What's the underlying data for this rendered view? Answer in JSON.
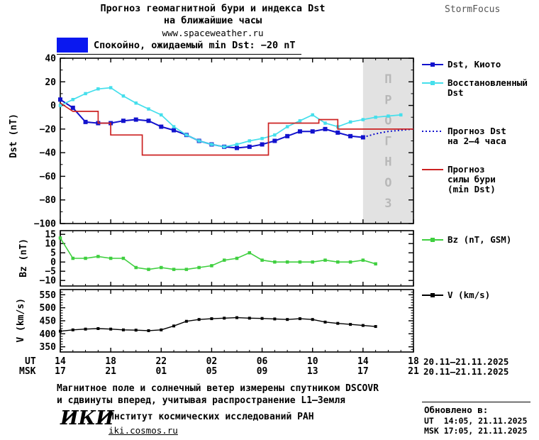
{
  "header": {
    "title_line1": "Прогноз геомагнитной бури и индекса Dst",
    "title_line2": "на ближайшие часы",
    "url": "www.spaceweather.ru",
    "brand": "StormFocus"
  },
  "status": {
    "text": "Спокойно, ожидаемый min Dst: −20 nT",
    "swatch_color": "#0a18f0"
  },
  "chart_data": [
    {
      "type": "line",
      "name": "dst-panel",
      "ylabel": "Dst (nT)",
      "xlim": [
        0,
        28
      ],
      "x_start_label_ut": "14",
      "ylim": [
        -100,
        40
      ],
      "yticks": [
        40,
        20,
        0,
        -20,
        -40,
        -60,
        -80,
        -100
      ],
      "ytick_labels": [
        "40",
        "20",
        "0",
        "−20",
        "−40",
        "−60",
        "−80",
        "−100"
      ],
      "yminor_step": 10,
      "forecast_band": [
        24,
        28
      ],
      "band_text": "ПРОГНОЗ",
      "series": [
        {
          "name": "Dst, Киото",
          "color": "#1212cd",
          "marker": "square",
          "marker_size": 6,
          "width": 2,
          "x": [
            0,
            1,
            2,
            3,
            4,
            5,
            6,
            7,
            8,
            9,
            10,
            11,
            12,
            13,
            14,
            15,
            16,
            17,
            18,
            19,
            20,
            21,
            22,
            23,
            24
          ],
          "values": [
            5,
            -2,
            -14,
            -15,
            -15,
            -13,
            -12,
            -13,
            -18,
            -21,
            -25,
            -30,
            -33,
            -35,
            -36,
            -35,
            -33,
            -30,
            -26,
            -22,
            -22,
            -20,
            -23,
            -26,
            -27
          ]
        },
        {
          "name": "Восстановленный Dst",
          "color": "#45dfec",
          "marker": "square",
          "marker_size": 4.5,
          "width": 1.7,
          "x": [
            0,
            1,
            2,
            3,
            4,
            5,
            6,
            7,
            8,
            9,
            10,
            11,
            12,
            13,
            14,
            15,
            16,
            17,
            18,
            19,
            20,
            21,
            22,
            23,
            24,
            25,
            26,
            27
          ],
          "values": [
            0,
            5,
            10,
            14,
            15,
            8,
            2,
            -3,
            -8,
            -18,
            -25,
            -30,
            -33,
            -35,
            -33,
            -30,
            -28,
            -25,
            -18,
            -13,
            -8,
            -15,
            -18,
            -14,
            -12,
            -10,
            -9,
            -8
          ]
        },
        {
          "name": "Прогноз Dst на 2–4 часа",
          "color": "#1212cd",
          "dash": "2,3",
          "width": 2,
          "x": [
            24,
            25,
            26,
            27,
            28
          ],
          "values": [
            -27,
            -24,
            -22,
            -21,
            -20
          ]
        },
        {
          "name": "Прогноз силы бури (min Dst)",
          "color": "#cc2222",
          "width": 1.7,
          "x": [
            0,
            1,
            3,
            3,
            4,
            4,
            6.5,
            6.5,
            16.5,
            16.5,
            20.5,
            20.5,
            22,
            22,
            28
          ],
          "values": [
            2,
            -5,
            -5,
            -15,
            -15,
            -25,
            -25,
            -42,
            -42,
            -15,
            -15,
            -12,
            -12,
            -20,
            -20
          ]
        }
      ]
    },
    {
      "type": "line",
      "name": "bz-panel",
      "ylabel": "Bz (nT)",
      "xlim": [
        0,
        28
      ],
      "ylim": [
        -13,
        17
      ],
      "yticks": [
        15,
        10,
        5,
        0,
        -5,
        -10
      ],
      "ytick_labels": [
        "15",
        "10",
        "5",
        "0",
        "−5",
        "−10"
      ],
      "series": [
        {
          "name": "Bz (nT, GSM)",
          "color": "#3fcf3f",
          "marker": "square",
          "marker_size": 4.5,
          "width": 1.6,
          "x": [
            0,
            1,
            2,
            3,
            4,
            5,
            6,
            7,
            8,
            9,
            10,
            11,
            12,
            13,
            14,
            15,
            16,
            17,
            18,
            19,
            20,
            21,
            22,
            23,
            24,
            25
          ],
          "values": [
            13,
            2,
            2,
            3,
            2,
            2,
            -3,
            -4,
            -3,
            -4,
            -4,
            -3,
            -2,
            1,
            2,
            5,
            1,
            0,
            0,
            0,
            0,
            1,
            0,
            0,
            1,
            -1
          ]
        }
      ]
    },
    {
      "type": "line",
      "name": "v-panel",
      "ylabel": "V (km/s)",
      "xlim": [
        0,
        28
      ],
      "ylim": [
        330,
        570
      ],
      "yticks": [
        550,
        500,
        450,
        400,
        350
      ],
      "ytick_labels": [
        "550",
        "500",
        "450",
        "400",
        "350"
      ],
      "yminor_step": 10,
      "series": [
        {
          "name": "V (km/s)",
          "color": "#000000",
          "marker": "square",
          "marker_size": 4,
          "width": 1.4,
          "x": [
            0,
            1,
            2,
            3,
            4,
            5,
            6,
            7,
            8,
            9,
            10,
            11,
            12,
            13,
            14,
            15,
            16,
            17,
            18,
            19,
            20,
            21,
            22,
            23,
            24,
            25
          ],
          "values": [
            410,
            415,
            418,
            420,
            418,
            415,
            414,
            412,
            415,
            430,
            448,
            455,
            458,
            460,
            462,
            460,
            459,
            457,
            455,
            458,
            455,
            445,
            440,
            436,
            432,
            428
          ]
        }
      ]
    }
  ],
  "legend": {
    "items": [
      {
        "lines": [
          "Dst, Киото"
        ],
        "color": "#1212cd",
        "icon": "line-square"
      },
      {
        "lines": [
          "Восстановленный",
          "Dst"
        ],
        "color": "#45dfec",
        "icon": "line-square"
      },
      {
        "lines": [
          "Прогноз Dst",
          "на 2–4 часа"
        ],
        "color": "#1212cd",
        "icon": "dotted"
      },
      {
        "lines": [
          "Прогноз",
          "силы бури",
          "(min Dst)"
        ],
        "color": "#cc2222",
        "icon": "line"
      },
      {
        "lines": [
          "Bz (nT, GSM)"
        ],
        "color": "#3fcf3f",
        "icon": "line-square"
      },
      {
        "lines": [
          "V (km/s)"
        ],
        "color": "#000000",
        "icon": "line-square"
      }
    ]
  },
  "xaxis": {
    "row_ut_label": "UT",
    "row_msk_label": "MSK",
    "tick_hours": [
      0,
      4,
      8,
      12,
      16,
      20,
      24,
      28
    ],
    "ut_labels": [
      "14",
      "18",
      "22",
      "02",
      "06",
      "10",
      "14",
      "18"
    ],
    "msk_labels": [
      "17",
      "21",
      "01",
      "05",
      "09",
      "13",
      "17",
      "21"
    ],
    "ut_date_range": "20.11–21.11.2025",
    "msk_date_range": "20.11–21.11.2025"
  },
  "footer": {
    "note_line1": "Магнитное поле и солнечный ветер измерены спутником DSCOVR",
    "note_line2": "и сдвинуты вперед, учитывая распространение L1–Земля",
    "logo": "ИКИ",
    "institute": "Институт космических исследований РАН",
    "institute_url": "iki.cosmos.ru",
    "updated_label": "Обновлено в:",
    "updated_ut": "UT  14:05, 21.11.2025",
    "updated_msk": "MSK 17:05, 21.11.2025"
  }
}
